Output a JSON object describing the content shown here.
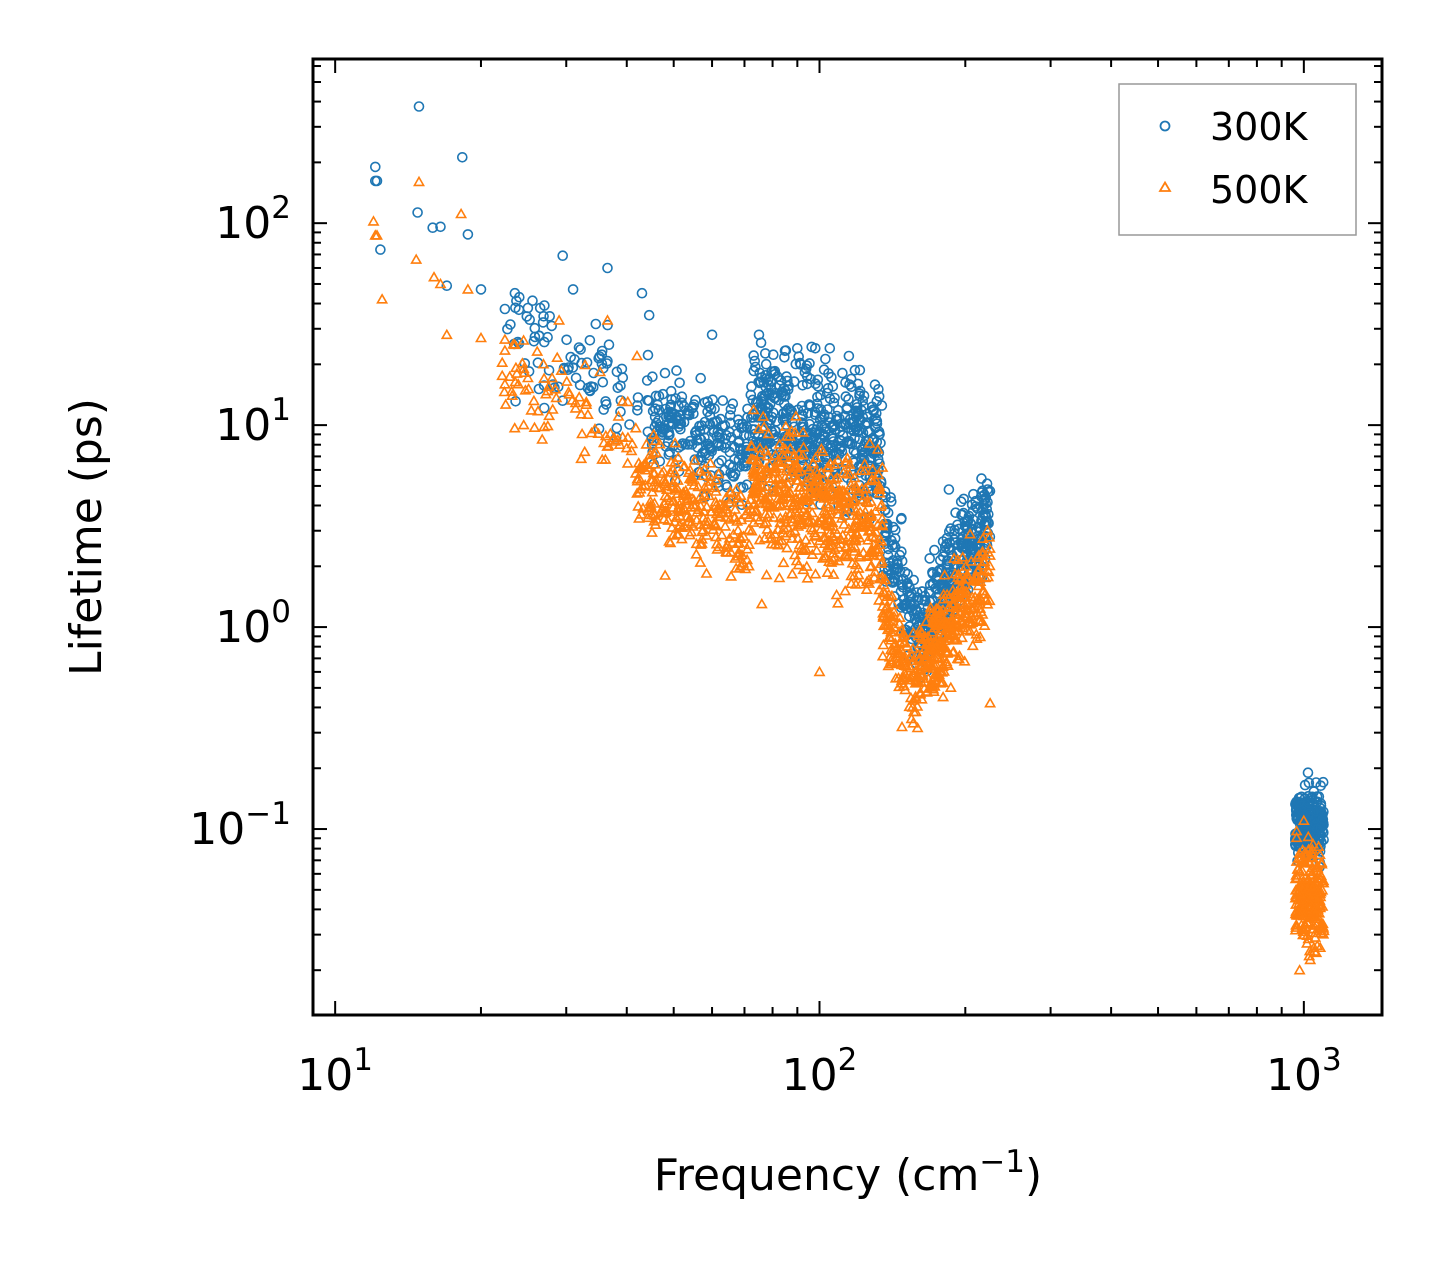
{
  "chart_data": {
    "type": "scatter",
    "title": "",
    "xlabel": {
      "base": "Frequency (cm",
      "exponent": "−1",
      "suffix": ")"
    },
    "ylabel": "Lifetime (ps)",
    "xscale": "log",
    "yscale": "log",
    "xlim": [
      9,
      1450
    ],
    "ylim": [
      0.012,
      650
    ],
    "x_ticks": [
      {
        "value": 10,
        "base": "10",
        "exponent": "1"
      },
      {
        "value": 100,
        "base": "10",
        "exponent": "2"
      },
      {
        "value": 1000,
        "base": "10",
        "exponent": "3"
      }
    ],
    "y_ticks": [
      {
        "value": 0.1,
        "base": "10",
        "exponent": "−1"
      },
      {
        "value": 1,
        "base": "10",
        "exponent": "0"
      },
      {
        "value": 10,
        "base": "10",
        "exponent": "1"
      },
      {
        "value": 100,
        "base": "10",
        "exponent": "2"
      }
    ],
    "legend_position": "top-right",
    "grid": false,
    "series": [
      {
        "name": "300K",
        "marker": "circle",
        "color": "#1f77b4",
        "clusters": [
          {
            "fmin": 22,
            "fmax": 45,
            "lo": 8,
            "hi": 45,
            "n": 90,
            "slope": -0.3
          },
          {
            "fmin": 45,
            "fmax": 72,
            "lo": 4,
            "hi": 20,
            "n": 220,
            "slope": -0.2
          },
          {
            "fmin": 72,
            "fmax": 135,
            "lo": 3,
            "hi": 28,
            "n": 500,
            "slope": -0.2
          },
          {
            "fmin": 135,
            "fmax": 160,
            "lo": 0.7,
            "hi": 4,
            "n": 120,
            "slope": -0.5
          },
          {
            "fmin": 160,
            "fmax": 225,
            "lo": 0.8,
            "hi": 4.5,
            "n": 320,
            "slope": 0.6
          },
          {
            "fmin": 960,
            "fmax": 1100,
            "lo": 0.06,
            "hi": 0.19,
            "n": 220,
            "slope": 0
          }
        ],
        "points": [
          [
            12.1,
            190
          ],
          [
            12.1,
            162
          ],
          [
            12.2,
            162
          ],
          [
            14.9,
            378
          ],
          [
            14.8,
            113
          ],
          [
            15.9,
            95
          ],
          [
            16.5,
            96
          ],
          [
            18.3,
            212
          ],
          [
            18.8,
            88
          ],
          [
            12.4,
            74
          ],
          [
            17.0,
            49
          ],
          [
            20.0,
            47
          ],
          [
            23.5,
            45
          ],
          [
            24.0,
            43
          ],
          [
            25.0,
            38
          ],
          [
            26.5,
            38
          ],
          [
            28.0,
            31
          ],
          [
            29.5,
            69
          ],
          [
            31.0,
            47
          ],
          [
            36.5,
            60
          ],
          [
            43.0,
            45
          ],
          [
            44.5,
            35
          ],
          [
            60.0,
            28
          ],
          [
            75.0,
            28
          ],
          [
            90.0,
            24
          ],
          [
            98.0,
            24
          ],
          [
            105.0,
            24
          ],
          [
            115.0,
            22
          ],
          [
            120.0,
            16
          ],
          [
            185.0,
            4.8
          ],
          [
            210.0,
            4.2
          ],
          [
            1020.0,
            0.19
          ],
          [
            1060.0,
            0.17
          ]
        ]
      },
      {
        "name": "500K",
        "marker": "triangle",
        "color": "#ff7f0e",
        "clusters": [
          {
            "fmin": 22,
            "fmax": 42,
            "lo": 6,
            "hi": 25,
            "n": 80,
            "slope": -0.3
          },
          {
            "fmin": 42,
            "fmax": 72,
            "lo": 1.8,
            "hi": 9,
            "n": 260,
            "slope": -0.3
          },
          {
            "fmin": 72,
            "fmax": 135,
            "lo": 1.2,
            "hi": 12,
            "n": 520,
            "slope": -0.2
          },
          {
            "fmin": 135,
            "fmax": 160,
            "lo": 0.35,
            "hi": 1.5,
            "n": 120,
            "slope": -0.4
          },
          {
            "fmin": 160,
            "fmax": 225,
            "lo": 0.45,
            "hi": 2.5,
            "n": 320,
            "slope": 0.5
          },
          {
            "fmin": 960,
            "fmax": 1100,
            "lo": 0.02,
            "hi": 0.11,
            "n": 220,
            "slope": 0
          }
        ],
        "points": [
          [
            12.0,
            102
          ],
          [
            12.1,
            87
          ],
          [
            12.2,
            87
          ],
          [
            14.9,
            160
          ],
          [
            14.7,
            66
          ],
          [
            16.0,
            54
          ],
          [
            16.5,
            50
          ],
          [
            18.2,
            111
          ],
          [
            18.8,
            47
          ],
          [
            12.5,
            42
          ],
          [
            17.0,
            28
          ],
          [
            20.0,
            27
          ],
          [
            23.5,
            25
          ],
          [
            24.5,
            19
          ],
          [
            27.0,
            17
          ],
          [
            29.0,
            33
          ],
          [
            33.0,
            13
          ],
          [
            36.5,
            33
          ],
          [
            42.0,
            22
          ],
          [
            24.5,
            10
          ],
          [
            27.0,
            9.8
          ],
          [
            48.0,
            1.8
          ],
          [
            76.0,
            1.3
          ],
          [
            100.0,
            0.6
          ],
          [
            148.0,
            0.32
          ],
          [
            180.0,
            0.45
          ],
          [
            225.0,
            0.42
          ],
          [
            980.0,
            0.02
          ],
          [
            1000.0,
            0.11
          ]
        ]
      }
    ]
  }
}
